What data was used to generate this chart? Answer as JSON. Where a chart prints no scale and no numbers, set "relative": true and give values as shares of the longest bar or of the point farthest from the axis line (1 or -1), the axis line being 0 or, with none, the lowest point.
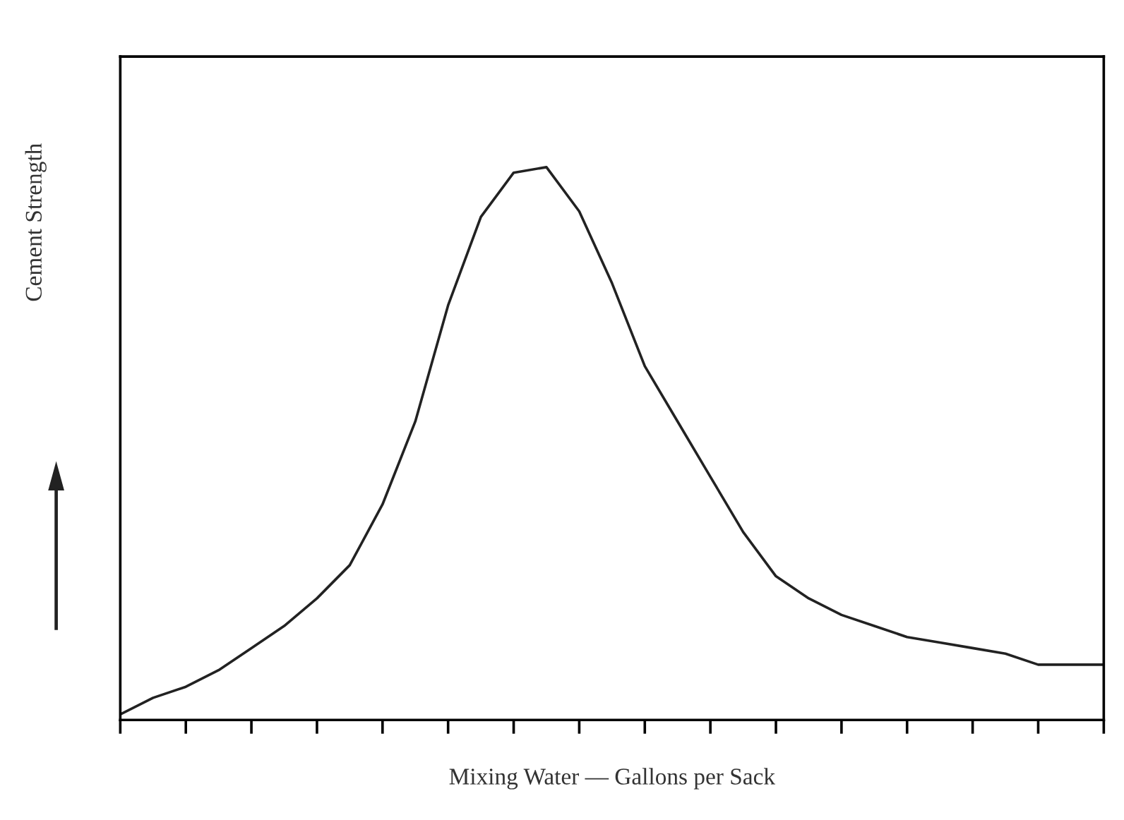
{
  "chart_data": {
    "type": "line",
    "relative": true,
    "xlabel": "Mixing Water — Gallons per Sack",
    "ylabel": "Cement Strength",
    "categories": [
      null,
      null,
      null,
      null,
      null,
      null,
      null,
      null,
      null,
      null,
      null,
      null,
      null,
      null,
      null,
      null,
      null,
      null,
      null,
      null,
      null,
      null,
      null,
      null,
      null,
      null,
      null,
      null,
      null,
      null,
      null
    ],
    "series": [
      {
        "color": "#222222",
        "values": [
          0.01,
          0.04,
          0.06,
          0.09,
          0.13,
          0.17,
          0.22,
          0.28,
          0.39,
          0.54,
          0.75,
          0.91,
          0.99,
          1.0,
          0.92,
          0.79,
          0.64,
          0.54,
          0.44,
          0.34,
          0.26,
          0.22,
          0.19,
          0.17,
          0.15,
          0.14,
          0.13,
          0.12,
          0.1,
          0.1,
          0.1
        ]
      }
    ],
    "marker": "none",
    "line_style": "solid",
    "grid": false,
    "legend": false
  }
}
